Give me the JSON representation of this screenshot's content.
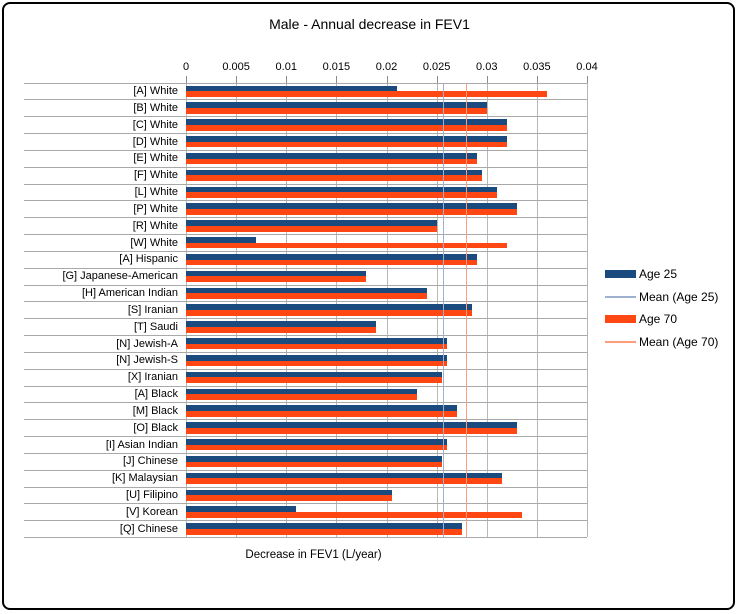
{
  "chart_data": {
    "type": "bar",
    "orientation": "horizontal",
    "title": "Male - Annual decrease in FEV1",
    "xlabel": "Decrease in FEV1 (L/year)",
    "xlim": [
      0,
      0.04
    ],
    "x_ticks": [
      0,
      0.005,
      0.01,
      0.015,
      0.02,
      0.025,
      0.03,
      0.035,
      0.04
    ],
    "x_tick_labels": [
      "0",
      "0.005",
      "0.01",
      "0.015",
      "0.02",
      "0.025",
      "0.03",
      "0.035",
      "0.04"
    ],
    "grid": true,
    "legend_position": "right",
    "categories": [
      "[A] White",
      "[B] White",
      "[C] White",
      "[D] White",
      "[E] White",
      "[F] White",
      "[L] White",
      "[P] White",
      "[R] White",
      "[W] White",
      "[A] Hispanic",
      "[G] Japanese-American",
      "[H] American Indian",
      "[S] Iranian",
      "[T] Saudi",
      "[N] Jewish-A",
      "[N] Jewish-S",
      "[X] Iranian",
      "[A] Black",
      "[M] Black",
      "[O] Black",
      "[I] Asian Indian",
      "[J] Chinese",
      "[K] Malaysian",
      "[U] Filipino",
      "[V] Korean",
      "[Q] Chinese"
    ],
    "series": [
      {
        "name": "Age 25",
        "color": "#1A4A7E",
        "values": [
          0.021,
          0.03,
          0.032,
          0.032,
          0.029,
          0.0295,
          0.031,
          0.033,
          0.025,
          0.007,
          0.029,
          0.018,
          0.024,
          0.0285,
          0.019,
          0.026,
          0.026,
          0.0255,
          0.023,
          0.027,
          0.033,
          0.026,
          0.0255,
          0.0315,
          0.0205,
          0.011,
          0.0275
        ]
      },
      {
        "name": "Age 70",
        "color": "#FF4713",
        "values": [
          0.036,
          0.03,
          0.032,
          0.032,
          0.029,
          0.0295,
          0.031,
          0.033,
          0.025,
          0.032,
          0.029,
          0.018,
          0.024,
          0.0285,
          0.019,
          0.026,
          0.026,
          0.0255,
          0.023,
          0.027,
          0.033,
          0.026,
          0.0255,
          0.0315,
          0.0205,
          0.0335,
          0.0275
        ]
      }
    ],
    "mean_lines": [
      {
        "name": "Mean (Age 25)",
        "value": 0.0256,
        "color": "#9FB1CE"
      },
      {
        "name": "Mean (Age 70)",
        "value": 0.0279,
        "color": "#FF9C7C"
      }
    ]
  },
  "legend": {
    "items": [
      {
        "label": "Age 25",
        "type": "bar",
        "color": "#1A4A7E"
      },
      {
        "label": "Mean (Age 25)",
        "type": "line",
        "color": "#9FB1CE"
      },
      {
        "label": "Age 70",
        "type": "bar",
        "color": "#FF4713"
      },
      {
        "label": "Mean (Age 70)",
        "type": "line",
        "color": "#FF9C7C"
      }
    ]
  },
  "colors": {
    "age25_bar": "#1A4A7E",
    "age70_bar": "#FF4713",
    "mean25_line": "#9FB1CE",
    "mean70_line": "#FF9C7C",
    "gridline": "#B8B8B8",
    "frame_border": "#000000"
  }
}
